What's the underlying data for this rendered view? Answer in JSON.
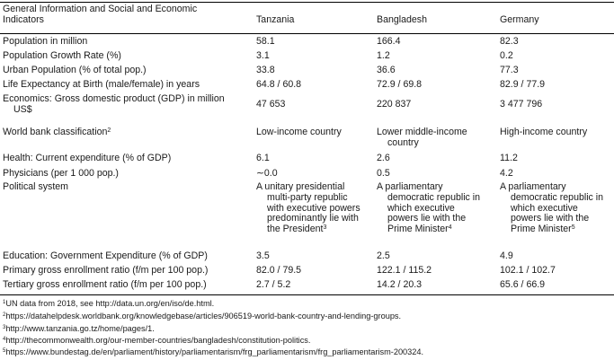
{
  "table": {
    "header": {
      "indicators_line1": "General Information and Social and Economic",
      "indicators_line2": "Indicators",
      "col1": "Tanzania",
      "col2": "Bangladesh",
      "col3": "Germany"
    },
    "rows": {
      "population": {
        "label": "Population in million",
        "tz": "58.1",
        "bd": "166.4",
        "de": "82.3"
      },
      "growth": {
        "label": "Population Growth Rate (%)",
        "tz": "3.1",
        "bd": "1.2",
        "de": "0.2"
      },
      "urban": {
        "label": "Urban Population (% of total pop.)",
        "tz": "33.8",
        "bd": "36.6",
        "de": "77.3"
      },
      "life": {
        "label": "Life Expectancy at Birth (male/female) in years",
        "tz": "64.8 / 60.8",
        "bd": "72.9 / 69.8",
        "de": "82.9 / 77.9"
      },
      "gdp": {
        "label_line1": "Economics: Gross domestic product (GDP) in million",
        "label_line2": "US$",
        "tz": "47 653",
        "bd": "220 837",
        "de": "3 477 796"
      },
      "wb": {
        "label": "World bank classification",
        "label_sup": "2",
        "tz": "Low-income country",
        "bd_line1": "Lower middle-income",
        "bd_line2": "country",
        "de": "High-income country"
      },
      "health": {
        "label": "Health: Current expenditure (% of GDP)",
        "tz": "6.1",
        "bd": "2.6",
        "de": "11.2"
      },
      "physicians": {
        "label": "Physicians (per 1 000 pop.)",
        "tz": "∼0.0",
        "bd": "0.5",
        "de": "4.2"
      },
      "political": {
        "label": "Political system",
        "tz": [
          "A unitary presidential",
          "multi-party republic",
          "with executive powers",
          "predominantly lie with",
          "the President"
        ],
        "tz_sup": "3",
        "bd": [
          "A parliamentary",
          "democratic republic in",
          "which executive",
          "powers lie with the",
          "Prime Minister"
        ],
        "bd_sup": "4",
        "de": [
          "A parliamentary",
          "democratic republic in",
          "which executive",
          "powers lie with the",
          "Prime Minister"
        ],
        "de_sup": "5"
      },
      "education": {
        "label": "Education: Government Expenditure (% of GDP)",
        "tz": "3.5",
        "bd": "2.5",
        "de": "4.9"
      },
      "primary": {
        "label": "Primary gross enrollment ratio (f/m per 100 pop.)",
        "tz": "82.0 / 79.5",
        "bd": "122.1 / 115.2",
        "de": "102.1 / 102.7"
      },
      "tertiary": {
        "label": "Tertiary gross enrollment ratio (f/m per 100 pop.)",
        "tz": "2.7 / 5.2",
        "bd": "14.2 / 20.3",
        "de": "65.6 / 66.9"
      }
    }
  },
  "footnotes": [
    {
      "mark": "1",
      "text": "UN data from 2018, see http://data.un.org/en/iso/de.html."
    },
    {
      "mark": "2",
      "text": "https://datahelpdesk.worldbank.org/knowledgebase/articles/906519-world-bank-country-and-lending-groups."
    },
    {
      "mark": "3",
      "text": "http://www.tanzania.go.tz/home/pages/1."
    },
    {
      "mark": "4",
      "text": "http://thecommonwealth.org/our-member-countries/bangladesh/constitution-politics."
    },
    {
      "mark": "5",
      "text": "https://www.bundestag.de/en/parliament/history/parliamentarism/frg_parliamentarism/frg_parliamentarism-200324."
    }
  ]
}
